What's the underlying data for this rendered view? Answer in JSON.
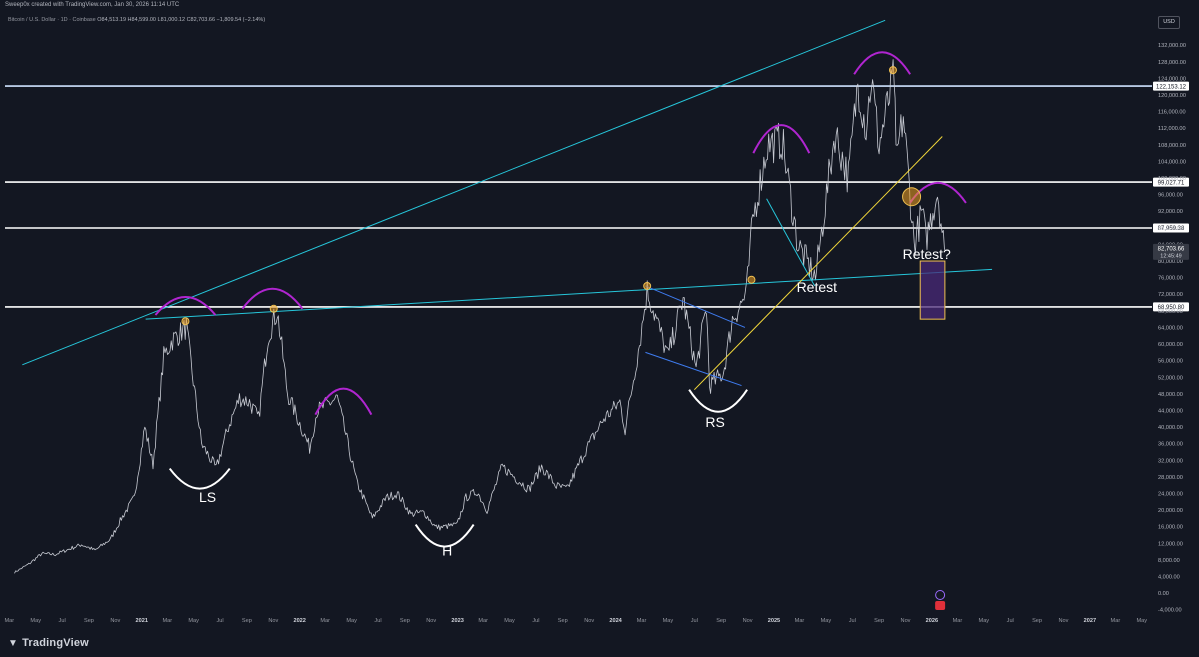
{
  "attribution": "Sweep0x created with TradingView.com, Jan 30, 2026 11:14 UTC",
  "symbol_line": "Bitcoin / U.S. Dollar · 1D · Coinbase",
  "ohlc_line": "O84,513.19 H84,599.00 L81,000.12 C82,703.66 −1,809.54 (−2.14%)",
  "currency_button": "USD",
  "footer_logo": "TradingView",
  "footer_logo_icon": "tradingview-logo-icon",
  "colors": {
    "background": "#131722",
    "price": "#d1d4dc",
    "trendline": "#26c6da",
    "yellow": "#f0d63a",
    "arc": "#b025d0",
    "level": "#ffffff",
    "box_fill": "#4a2a78",
    "box_border": "#f0c050"
  },
  "chart_data": {
    "type": "line",
    "series": [
      {
        "x": [
          "2020-03-13",
          "2020-04-15",
          "2020-05-15",
          "2020-06-15",
          "2020-07-27",
          "2020-08-15",
          "2020-09-15",
          "2020-10-21",
          "2020-11-15",
          "2020-12-15",
          "2021-01-08",
          "2021-01-27",
          "2021-02-21",
          "2021-03-13",
          "2021-04-14",
          "2021-05-19",
          "2021-06-22",
          "2021-07-20",
          "2021-08-15",
          "2021-09-07",
          "2021-09-28",
          "2021-10-20",
          "2021-11-10",
          "2021-12-04",
          "2022-01-24",
          "2022-02-10",
          "2022-03-29",
          "2022-05-12",
          "2022-06-18",
          "2022-07-20",
          "2022-08-15",
          "2022-09-15",
          "2022-10-15",
          "2022-11-10",
          "2022-11-21",
          "2022-12-31",
          "2023-01-20",
          "2023-02-15",
          "2023-03-10",
          "2023-04-14",
          "2023-06-15",
          "2023-07-14",
          "2023-08-17",
          "2023-09-11",
          "2023-10-24",
          "2023-12-05",
          "2024-01-11",
          "2024-01-23",
          "2024-02-28",
          "2024-03-14",
          "2024-04-13",
          "2024-05-01",
          "2024-06-05",
          "2024-07-05",
          "2024-07-29",
          "2024-08-05",
          "2024-09-06",
          "2024-09-27",
          "2024-10-29",
          "2024-11-13",
          "2024-12-17",
          "2025-01-20",
          "2025-02-25",
          "2025-04-07",
          "2025-05-22",
          "2025-06-22",
          "2025-07-14",
          "2025-08-02",
          "2025-08-14",
          "2025-09-01",
          "2025-10-06",
          "2025-10-10",
          "2025-10-27",
          "2025-11-21",
          "2025-12-10",
          "2025-12-18",
          "2026-01-14",
          "2026-01-30"
        ],
        "y": [
          5000,
          7000,
          9500,
          9300,
          11000,
          11700,
          10300,
          13000,
          18000,
          23000,
          40000,
          31000,
          57000,
          61000,
          64000,
          36000,
          30000,
          40000,
          47000,
          46000,
          42000,
          62000,
          68000,
          48000,
          35000,
          44000,
          47000,
          27000,
          18000,
          23000,
          24000,
          19000,
          19500,
          16000,
          15800,
          16500,
          23000,
          24500,
          20000,
          30500,
          25000,
          30500,
          25800,
          25000,
          34500,
          42000,
          46000,
          39500,
          62000,
          73000,
          63000,
          57000,
          71000,
          54000,
          69000,
          50000,
          53000,
          66000,
          72000,
          90000,
          108000,
          109000,
          84000,
          76000,
          111000,
          100000,
          123000,
          112000,
          124000,
          108000,
          125000,
          104000,
          115000,
          84000,
          92000,
          85000,
          97000,
          82700
        ]
      }
    ],
    "ylim": [
      -6000,
      140000
    ],
    "xlim": [
      "2020-02-20",
      "2027-05-20"
    ],
    "y_ticks": [
      "132,000.00",
      "128,000.00",
      "124,000.00",
      "120,000.00",
      "116,000.00",
      "112,000.00",
      "108,000.00",
      "104,000.00",
      "100,000.00",
      "96,000.00",
      "92,000.00",
      "88,000.00",
      "84,000.00",
      "80,000.00",
      "76,000.00",
      "72,000.00",
      "68,000.00",
      "64,000.00",
      "60,000.00",
      "56,000.00",
      "52,000.00",
      "48,000.00",
      "44,000.00",
      "40,000.00",
      "36,000.00",
      "32,000.00",
      "28,000.00",
      "24,000.00",
      "20,000.00",
      "16,000.00",
      "12,000.00",
      "8,000.00",
      "4,000.00",
      "0.00",
      "-4,000.00"
    ],
    "x_ticks": [
      {
        "label": "Mar",
        "date": "2020-03-01"
      },
      {
        "label": "May",
        "date": "2020-05-01"
      },
      {
        "label": "Jul",
        "date": "2020-07-01"
      },
      {
        "label": "Sep",
        "date": "2020-09-01"
      },
      {
        "label": "Nov",
        "date": "2020-11-01"
      },
      {
        "label": "2021",
        "date": "2021-01-01"
      },
      {
        "label": "Mar",
        "date": "2021-03-01"
      },
      {
        "label": "May",
        "date": "2021-05-01"
      },
      {
        "label": "Jul",
        "date": "2021-07-01"
      },
      {
        "label": "Sep",
        "date": "2021-09-01"
      },
      {
        "label": "Nov",
        "date": "2021-11-01"
      },
      {
        "label": "2022",
        "date": "2022-01-01"
      },
      {
        "label": "Mar",
        "date": "2022-03-01"
      },
      {
        "label": "May",
        "date": "2022-05-01"
      },
      {
        "label": "Jul",
        "date": "2022-07-01"
      },
      {
        "label": "Sep",
        "date": "2022-09-01"
      },
      {
        "label": "Nov",
        "date": "2022-11-01"
      },
      {
        "label": "2023",
        "date": "2023-01-01"
      },
      {
        "label": "Mar",
        "date": "2023-03-01"
      },
      {
        "label": "May",
        "date": "2023-05-01"
      },
      {
        "label": "Jul",
        "date": "2023-07-01"
      },
      {
        "label": "Sep",
        "date": "2023-09-01"
      },
      {
        "label": "Nov",
        "date": "2023-11-01"
      },
      {
        "label": "2024",
        "date": "2024-01-01"
      },
      {
        "label": "Mar",
        "date": "2024-03-01"
      },
      {
        "label": "May",
        "date": "2024-05-01"
      },
      {
        "label": "Jul",
        "date": "2024-07-01"
      },
      {
        "label": "Sep",
        "date": "2024-09-01"
      },
      {
        "label": "Nov",
        "date": "2024-11-01"
      },
      {
        "label": "2025",
        "date": "2025-01-01"
      },
      {
        "label": "Mar",
        "date": "2025-03-01"
      },
      {
        "label": "May",
        "date": "2025-05-01"
      },
      {
        "label": "Jul",
        "date": "2025-07-01"
      },
      {
        "label": "Sep",
        "date": "2025-09-01"
      },
      {
        "label": "Nov",
        "date": "2025-11-01"
      },
      {
        "label": "2026",
        "date": "2026-01-01"
      },
      {
        "label": "Mar",
        "date": "2026-03-01"
      },
      {
        "label": "May",
        "date": "2026-05-01"
      },
      {
        "label": "Jul",
        "date": "2026-07-01"
      },
      {
        "label": "Sep",
        "date": "2026-09-01"
      },
      {
        "label": "Nov",
        "date": "2026-11-01"
      },
      {
        "label": "2027",
        "date": "2027-01-01"
      },
      {
        "label": "Mar",
        "date": "2027-03-01"
      },
      {
        "label": "May",
        "date": "2027-05-01"
      }
    ],
    "horizontal_levels": [
      {
        "value": 122153.12,
        "label": "122,153.12",
        "color": "#cfe3ff"
      },
      {
        "value": 99027.71,
        "label": "99,027.71",
        "color": "#ffffff"
      },
      {
        "value": 87959.38,
        "label": "87,959.38",
        "color": "#ffffff"
      },
      {
        "value": 68950.8,
        "label": "68,950.80",
        "color": "#ffffff"
      }
    ],
    "last_price": {
      "value": 82703.66,
      "label": "82,703.66",
      "countdown": "12:45:49"
    },
    "trendlines": [
      {
        "from": [
          "2020-03-31",
          55000
        ],
        "to": [
          "2025-09-15",
          138000
        ],
        "color": "#26c6da",
        "width": 1
      },
      {
        "from": [
          "2021-01-10",
          66000
        ],
        "to": [
          "2026-05-20",
          78000
        ],
        "color": "#26c6da",
        "width": 1
      },
      {
        "from": [
          "2024-03-10",
          74000
        ],
        "to": [
          "2024-10-26",
          64000
        ],
        "color": "#3f7cf0",
        "width": 1
      },
      {
        "from": [
          "2024-03-10",
          58000
        ],
        "to": [
          "2024-10-18",
          50000
        ],
        "color": "#3f7cf0",
        "width": 1
      },
      {
        "from": [
          "2024-12-15",
          95000
        ],
        "to": [
          "2025-04-05",
          74000
        ],
        "color": "#26c6da",
        "width": 1
      },
      {
        "from": [
          "2024-07-01",
          49000
        ],
        "to": [
          "2026-01-25",
          110000
        ],
        "color": "#f0d63a",
        "width": 1
      }
    ],
    "circles": [
      {
        "at": [
          "2021-04-12",
          65500
        ],
        "r": 3.5
      },
      {
        "at": [
          "2021-11-02",
          68500
        ],
        "r": 3.5
      },
      {
        "at": [
          "2024-03-14",
          74000
        ],
        "r": 3.5
      },
      {
        "at": [
          "2024-11-10",
          75500
        ],
        "r": 3.5
      },
      {
        "at": [
          "2025-10-03",
          126000
        ],
        "r": 3.5
      },
      {
        "at": [
          "2025-11-15",
          95500
        ],
        "r": 9
      }
    ],
    "annotations": [
      {
        "text": "LS",
        "at": [
          "2021-06-02",
          22000
        ]
      },
      {
        "text": "H",
        "at": [
          "2022-12-08",
          9000
        ]
      },
      {
        "text": "RS",
        "at": [
          "2024-08-18",
          40000
        ]
      },
      {
        "text": "Retest",
        "at": [
          "2025-04-10",
          72500
        ]
      },
      {
        "text": "Retest?",
        "at": [
          "2025-12-20",
          80500
        ]
      }
    ],
    "cups": [
      {
        "cx": "2021-05-15",
        "cy": 30000,
        "w": 60,
        "h": 20
      },
      {
        "cx": "2022-12-02",
        "cy": 16500,
        "w": 58,
        "h": 22
      },
      {
        "cx": "2024-08-25",
        "cy": 49000,
        "w": 58,
        "h": 22
      }
    ],
    "caps": [
      {
        "cx": "2021-04-12",
        "cy": 67000,
        "w": 60,
        "h": 18
      },
      {
        "cx": "2021-10-30",
        "cy": 68500,
        "w": 60,
        "h": 20
      },
      {
        "cx": "2022-04-12",
        "cy": 43000,
        "w": 56,
        "h": 26
      },
      {
        "cx": "2025-01-18",
        "cy": 106000,
        "w": 56,
        "h": 28
      },
      {
        "cx": "2025-09-08",
        "cy": 125000,
        "w": 56,
        "h": 22
      },
      {
        "cx": "2026-01-15",
        "cy": 94000,
        "w": 56,
        "h": 20
      }
    ],
    "box": {
      "from": [
        "2025-12-05",
        80000
      ],
      "to": [
        "2026-01-31",
        66000
      ]
    }
  }
}
